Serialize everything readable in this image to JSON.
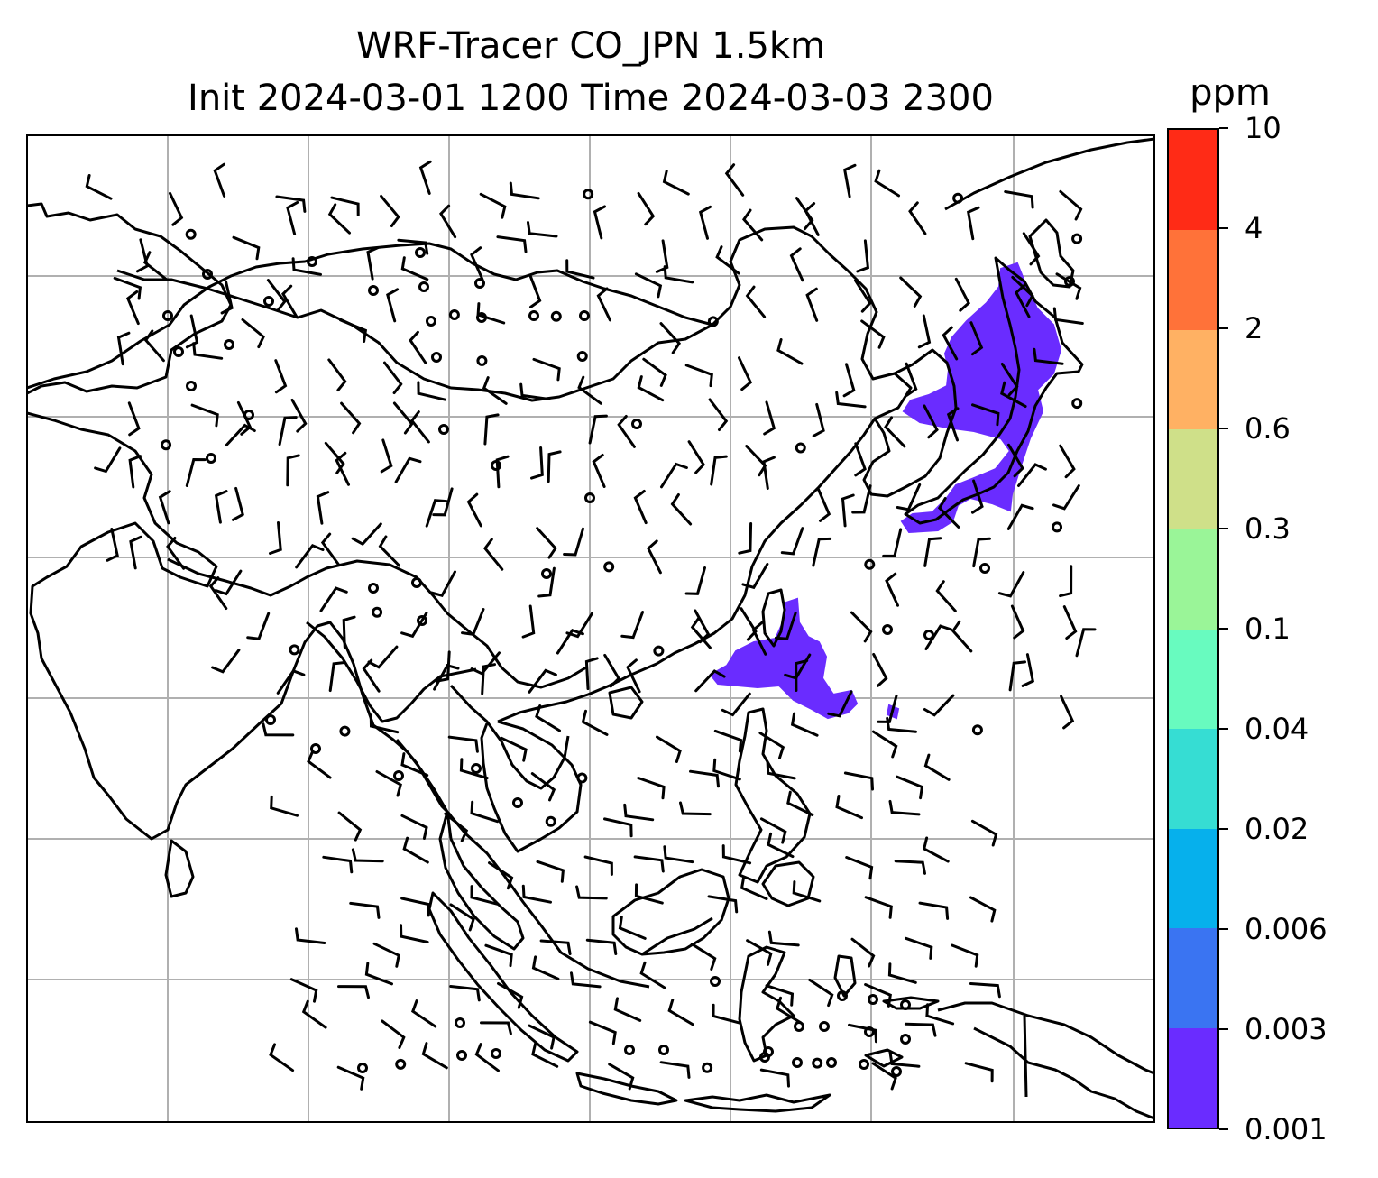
{
  "title": {
    "line1": "WRF-Tracer CO_JPN 1.5km",
    "line2": "Init 2024-03-01 1200 Time 2024-03-03 2300"
  },
  "colorbar": {
    "unit": "ppm",
    "levels": [
      "0.001",
      "0.003",
      "0.006",
      "0.02",
      "0.04",
      "0.1",
      "0.3",
      "0.6",
      "2",
      "4",
      "10"
    ],
    "colors": [
      "#6a2cff",
      "#3a74f2",
      "#06b0ec",
      "#36ddd3",
      "#68fbbf",
      "#9af598",
      "#cfe089",
      "#ffb163",
      "#ff7239",
      "#ff2b16"
    ]
  },
  "map": {
    "frame_color": "#000000",
    "grid_color": "#b0b0b0",
    "tracer_color": "#6a2cff",
    "coast_color": "#000000",
    "wind_barb_color": "#000000",
    "gridlines": "on",
    "features": [
      "coastlines",
      "country-borders",
      "wind-barbs",
      "tracer-concentration"
    ]
  }
}
